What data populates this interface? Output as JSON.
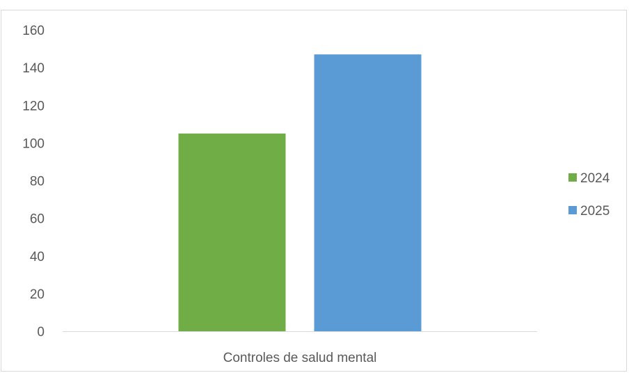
{
  "chart_data": {
    "type": "bar",
    "categories": [
      "Controles de salud mental"
    ],
    "series": [
      {
        "name": "2024",
        "values": [
          105
        ],
        "color": "#70ad47"
      },
      {
        "name": "2025",
        "values": [
          147
        ],
        "color": "#5b9bd5"
      }
    ],
    "ylim": [
      0,
      160
    ],
    "yticks": [
      0,
      20,
      40,
      60,
      80,
      100,
      120,
      140,
      160
    ],
    "grid": false,
    "legend": "right"
  }
}
